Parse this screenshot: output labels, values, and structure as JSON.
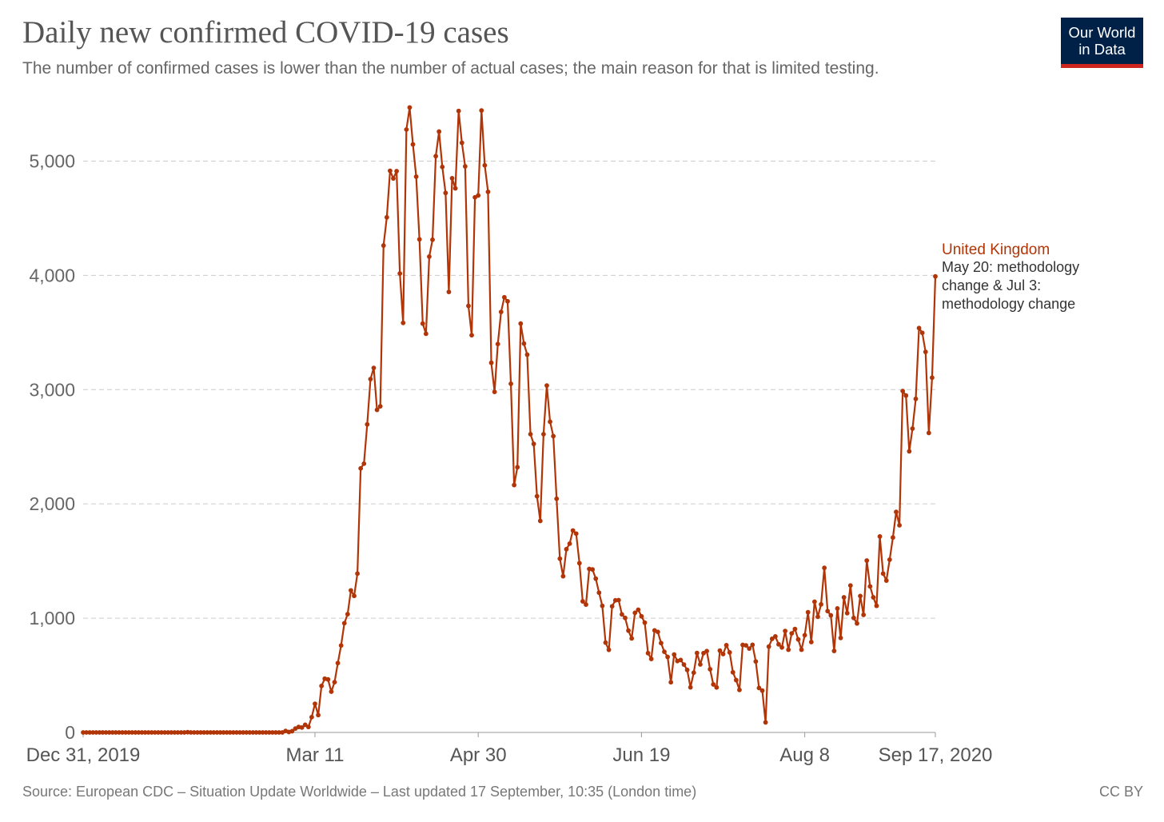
{
  "header": {
    "title": "Daily new confirmed COVID-19 cases",
    "subtitle": "The number of confirmed cases is lower than the number of actual cases; the main reason for that is limited testing."
  },
  "logo": {
    "line1": "Our World",
    "line2": "in Data"
  },
  "footer": {
    "source": "Source: European CDC – Situation Update Worldwide – Last updated 17 September, 10:35 (London time)",
    "license": "CC BY"
  },
  "colors": {
    "series": "#b13507",
    "grid": "#cccccc",
    "logo_bg": "#002147",
    "logo_accent": "#ce261e"
  },
  "chart_data": {
    "type": "line",
    "title": "Daily new confirmed COVID-19 cases",
    "subtitle": "The number of confirmed cases is lower than the number of actual cases; the main reason for that is limited testing.",
    "x_start": "2019-12-31",
    "x_end": "2020-09-17",
    "xtick_labels": [
      "Dec 31, 2019",
      "Mar 11",
      "Apr 30",
      "Jun 19",
      "Aug 8",
      "Sep 17, 2020"
    ],
    "xtick_dates": [
      "2019-12-31",
      "2020-03-11",
      "2020-04-30",
      "2020-06-19",
      "2020-08-08",
      "2020-09-17"
    ],
    "ylim": [
      0,
      5500
    ],
    "yticks": [
      0,
      1000,
      2000,
      3000,
      4000,
      5000
    ],
    "ytick_labels": [
      "0",
      "1,000",
      "2,000",
      "3,000",
      "4,000",
      "5,000"
    ],
    "grid": "horizontal dashed",
    "series": [
      {
        "name": "United Kingdom",
        "annotation": "May 20: methodology change & Jul 3: methodology change",
        "color": "#b13507",
        "values": [
          0,
          0,
          0,
          0,
          0,
          0,
          0,
          0,
          0,
          0,
          0,
          0,
          0,
          0,
          0,
          0,
          0,
          0,
          0,
          0,
          0,
          0,
          0,
          0,
          0,
          0,
          0,
          0,
          0,
          0,
          0,
          0,
          2,
          0,
          0,
          0,
          0,
          0,
          0,
          0,
          0,
          0,
          0,
          0,
          0,
          0,
          0,
          0,
          0,
          0,
          0,
          0,
          0,
          0,
          0,
          0,
          0,
          0,
          0,
          0,
          0,
          0,
          13,
          4,
          11,
          34,
          48,
          43,
          67,
          48,
          134,
          251,
          152,
          407,
          470,
          464,
          357,
          440,
          607,
          761,
          956,
          1035,
          1243,
          1195,
          1390,
          2311,
          2352,
          2696,
          3092,
          3190,
          2823,
          2854,
          4261,
          4508,
          4915,
          4848,
          4912,
          4016,
          3584,
          5276,
          5469,
          5146,
          4864,
          4315,
          3578,
          3489,
          4164,
          4312,
          5043,
          5258,
          4949,
          4721,
          3855,
          4850,
          4761,
          5439,
          5160,
          4954,
          3733,
          3476,
          4683,
          4699,
          5443,
          4963,
          4731,
          3235,
          2980,
          3399,
          3680,
          3808,
          3773,
          3051,
          2165,
          2321,
          3578,
          3403,
          3306,
          2610,
          2525,
          2067,
          1851,
          2610,
          3036,
          2719,
          2593,
          2045,
          1521,
          1367,
          1604,
          1652,
          1767,
          1740,
          1481,
          1147,
          1119,
          1431,
          1426,
          1346,
          1223,
          1108,
          786,
          723,
          1104,
          1156,
          1158,
          1033,
          1002,
          891,
          823,
          1047,
          1074,
          1016,
          961,
          694,
          643,
          893,
          880,
          782,
          706,
          661,
          439,
          682,
          625,
          634,
          594,
          547,
          395,
          523,
          695,
          595,
          694,
          712,
          553,
          420,
          394,
          716,
          686,
          763,
          700,
          526,
          458,
          372,
          766,
          762,
          734,
          767,
          621,
          389,
          366,
          88,
          751,
          819,
          840,
          771,
          744,
          888,
          724,
          867,
          905,
          814,
          724,
          851,
          1052,
          791,
          1144,
          1012,
          1121,
          1440,
          1062,
          1025,
          713,
          1085,
          827,
          1182,
          1044,
          1286,
          1002,
          954,
          1194,
          1029,
          1504,
          1278,
          1182,
          1108,
          1715,
          1390,
          1329,
          1512,
          1706,
          1930,
          1813,
          2988,
          2948,
          2460,
          2659,
          2919,
          3539,
          3497,
          3330,
          2621,
          3105,
          3991
        ]
      }
    ]
  }
}
